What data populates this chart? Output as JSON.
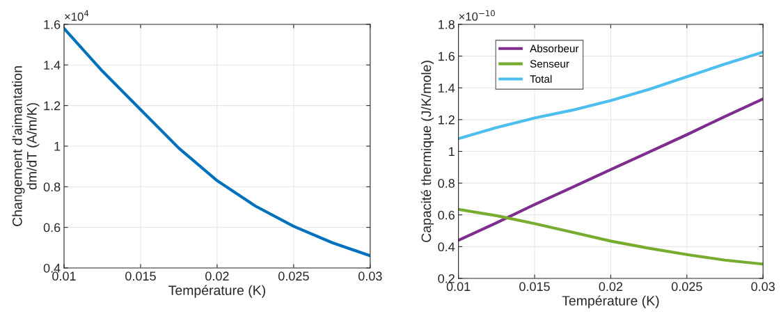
{
  "chart_data": [
    {
      "type": "line",
      "xlabel": "Température (K)",
      "ylabel": "Changement d'aimantation\ndm/dT (A/m/K)",
      "annotations": [
        "×10$^{4}$"
      ],
      "x": [
        0.01,
        0.0125,
        0.015,
        0.0175,
        0.02,
        0.0225,
        0.025,
        0.0275,
        0.03
      ],
      "series": [
        {
          "color": "#0072bd",
          "values": [
            1.58,
            1.37,
            1.18,
            0.99,
            0.83,
            0.705,
            0.605,
            0.525,
            0.46
          ]
        }
      ],
      "xlim": [
        0.01,
        0.03
      ],
      "xticks": [
        0.01,
        0.015,
        0.02,
        0.025,
        0.03
      ],
      "ylim": [
        0.4,
        1.6
      ],
      "yticks": [
        0.4,
        0.6,
        0.8,
        1,
        1.2,
        1.4,
        1.6
      ],
      "grid": true,
      "legend": false,
      "marker": "none",
      "line_style": "solid"
    },
    {
      "type": "line",
      "xlabel": "Température (K)",
      "ylabel": "Capacité thermique (J/K/mole)",
      "annotations": [
        "×10$^{−10}$"
      ],
      "x": [
        0.01,
        0.0125,
        0.015,
        0.0175,
        0.02,
        0.0225,
        0.025,
        0.0275,
        0.03
      ],
      "series": [
        {
          "name": "Absorbeur",
          "color": "#7e2f8e",
          "values": [
            0.44,
            0.55,
            0.665,
            0.775,
            0.885,
            0.995,
            1.105,
            1.22,
            1.33
          ]
        },
        {
          "name": "Senseur",
          "color": "#77ac30",
          "values": [
            0.635,
            0.595,
            0.545,
            0.49,
            0.435,
            0.39,
            0.35,
            0.315,
            0.29
          ]
        },
        {
          "name": "Total",
          "color": "#4dbeee",
          "values": [
            1.08,
            1.15,
            1.21,
            1.26,
            1.32,
            1.39,
            1.47,
            1.55,
            1.625
          ]
        }
      ],
      "xlim": [
        0.01,
        0.03
      ],
      "xticks": [
        0.01,
        0.015,
        0.02,
        0.025,
        0.03
      ],
      "ylim": [
        0.2,
        1.8
      ],
      "yticks": [
        0.2,
        0.4,
        0.6,
        0.8,
        1,
        1.2,
        1.4,
        1.6,
        1.8
      ],
      "grid": true,
      "legend": "top left",
      "marker": "none",
      "line_style": "solid"
    }
  ]
}
